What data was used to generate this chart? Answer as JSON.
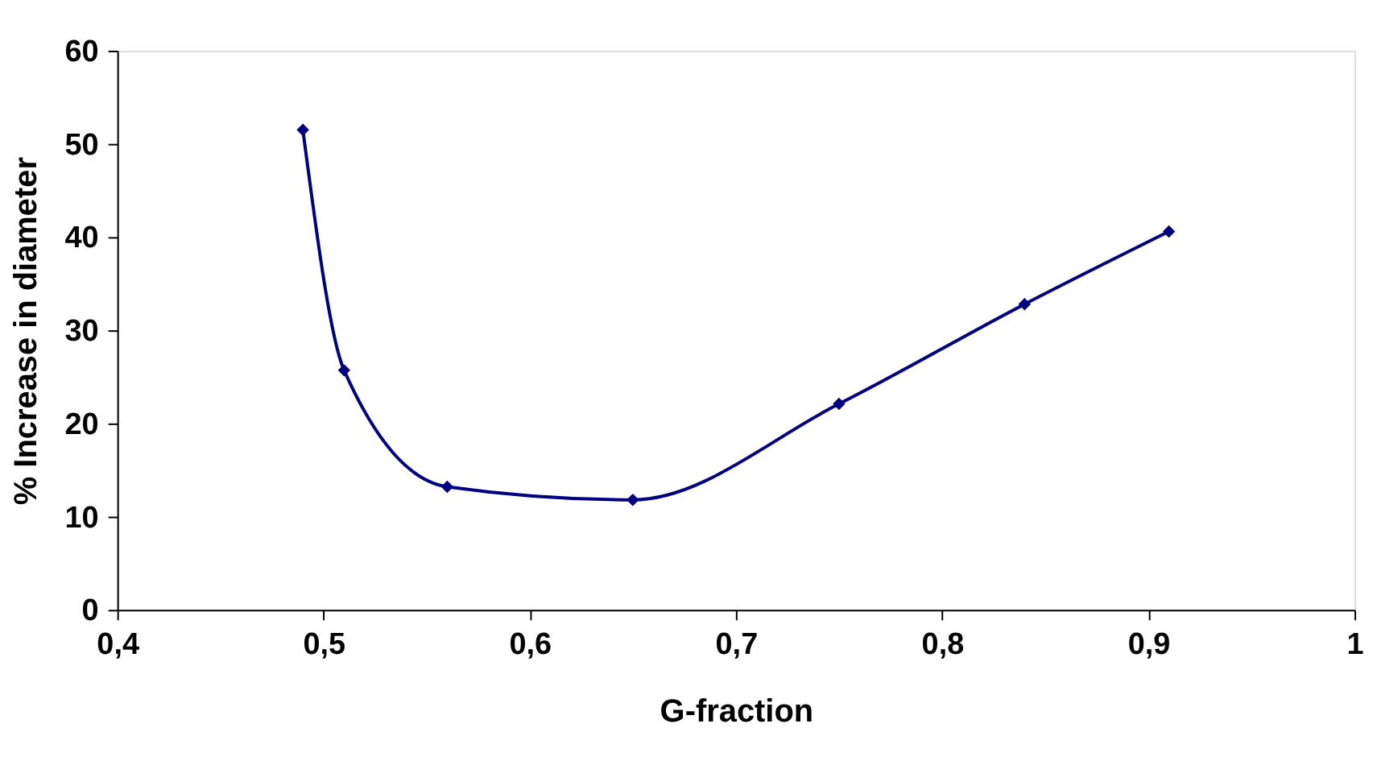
{
  "chart_data": {
    "type": "line",
    "xlabel": "G-fraction",
    "ylabel": "% Increase in diameter",
    "x": [
      0.49,
      0.51,
      0.56,
      0.65,
      0.75,
      0.84,
      0.91
    ],
    "series": [
      {
        "color": "#000080",
        "values": [
          51.5,
          25.7,
          13.2,
          11.8,
          22.1,
          32.8,
          40.6
        ]
      }
    ],
    "xlim": [
      0.4,
      1
    ],
    "xticks": [
      {
        "value": 0.4,
        "label": "0,4"
      },
      {
        "value": 0.5,
        "label": "0,5"
      },
      {
        "value": 0.6,
        "label": "0,6"
      },
      {
        "value": 0.7,
        "label": "0,7"
      },
      {
        "value": 0.8,
        "label": "0,8"
      },
      {
        "value": 0.9,
        "label": "0,9"
      },
      {
        "value": 1,
        "label": "1"
      }
    ],
    "ylim": [
      0,
      60
    ],
    "yticks": [
      0,
      10,
      20,
      30,
      40,
      50,
      60
    ],
    "grid": false,
    "marker": "diamond",
    "line_style": "solid"
  }
}
